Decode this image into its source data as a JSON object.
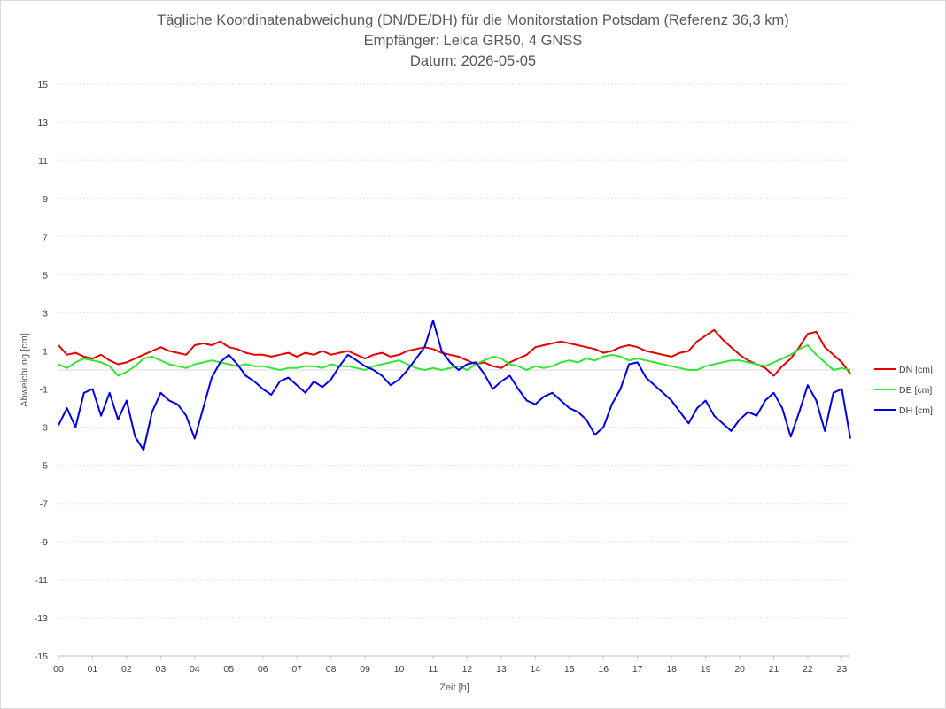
{
  "chart_data": {
    "type": "line",
    "title": "Tägliche Koordinatenabweichung (DN/DE/DH) für die Monitorstation Potsdam (Referenz 36,3 km)",
    "subtitle": "Empfänger: Leica GR50, 4 GNSS",
    "date_label": "Datum: 2026-05-05",
    "xlabel": "Zeit [h]",
    "ylabel": "Abweichung [cm]",
    "xlim": [
      0,
      23.25
    ],
    "ylim": [
      -15,
      15
    ],
    "x_ticks": [
      "00",
      "01",
      "02",
      "03",
      "04",
      "05",
      "06",
      "07",
      "08",
      "09",
      "10",
      "11",
      "12",
      "13",
      "14",
      "15",
      "16",
      "17",
      "18",
      "19",
      "20",
      "21",
      "22",
      "23"
    ],
    "y_ticks": [
      "15",
      "13",
      "11",
      "9",
      "7",
      "5",
      "3",
      "1",
      "-1",
      "-3",
      "-5",
      "-7",
      "-9",
      "-11",
      "-13",
      "-15"
    ],
    "y_tick_values": [
      15,
      13,
      11,
      9,
      7,
      5,
      3,
      1,
      -1,
      -3,
      -5,
      -7,
      -9,
      -11,
      -13,
      -15
    ],
    "grid": "horizontal dotted",
    "legend_position": "right",
    "series": [
      {
        "name": "DN [cm]",
        "color": "#e60000",
        "x": [
          0,
          0.25,
          0.5,
          0.75,
          1,
          1.25,
          1.5,
          1.75,
          2,
          2.25,
          2.5,
          2.75,
          3,
          3.25,
          3.5,
          3.75,
          4,
          4.25,
          4.5,
          4.75,
          5,
          5.25,
          5.5,
          5.75,
          6,
          6.25,
          6.5,
          6.75,
          7,
          7.25,
          7.5,
          7.75,
          8,
          8.25,
          8.5,
          8.75,
          9,
          9.25,
          9.5,
          9.75,
          10,
          10.25,
          10.5,
          10.75,
          11,
          11.25,
          11.5,
          11.75,
          12,
          12.25,
          12.5,
          12.75,
          13,
          13.25,
          13.5,
          13.75,
          14,
          14.25,
          14.5,
          14.75,
          15,
          15.25,
          15.5,
          15.75,
          16,
          16.25,
          16.5,
          16.75,
          17,
          17.25,
          17.5,
          17.75,
          18,
          18.25,
          18.5,
          18.75,
          19,
          19.25,
          19.5,
          19.75,
          20,
          20.25,
          20.5,
          20.75,
          21,
          21.25,
          21.5,
          21.75,
          22,
          22.25,
          22.5,
          22.75,
          23,
          23.25
        ],
        "values": [
          1.3,
          0.8,
          0.9,
          0.7,
          0.6,
          0.8,
          0.5,
          0.3,
          0.4,
          0.6,
          0.8,
          1.0,
          1.2,
          1.0,
          0.9,
          0.8,
          1.3,
          1.4,
          1.3,
          1.5,
          1.2,
          1.1,
          0.9,
          0.8,
          0.8,
          0.7,
          0.8,
          0.9,
          0.7,
          0.9,
          0.8,
          1.0,
          0.8,
          0.9,
          1.0,
          0.8,
          0.6,
          0.8,
          0.9,
          0.7,
          0.8,
          1.0,
          1.1,
          1.2,
          1.1,
          0.9,
          0.8,
          0.7,
          0.5,
          0.3,
          0.4,
          0.2,
          0.1,
          0.4,
          0.6,
          0.8,
          1.2,
          1.3,
          1.4,
          1.5,
          1.4,
          1.3,
          1.2,
          1.1,
          0.9,
          1.0,
          1.2,
          1.3,
          1.2,
          1.0,
          0.9,
          0.8,
          0.7,
          0.9,
          1.0,
          1.5,
          1.8,
          2.1,
          1.6,
          1.2,
          0.8,
          0.5,
          0.3,
          0.1,
          -0.3,
          0.2,
          0.6,
          1.2,
          1.9,
          2.0,
          1.2,
          0.8,
          0.4,
          -0.2
        ]
      },
      {
        "name": "DE [cm]",
        "color": "#33e633",
        "x": [
          0,
          0.25,
          0.5,
          0.75,
          1,
          1.25,
          1.5,
          1.75,
          2,
          2.25,
          2.5,
          2.75,
          3,
          3.25,
          3.5,
          3.75,
          4,
          4.25,
          4.5,
          4.75,
          5,
          5.25,
          5.5,
          5.75,
          6,
          6.25,
          6.5,
          6.75,
          7,
          7.25,
          7.5,
          7.75,
          8,
          8.25,
          8.5,
          8.75,
          9,
          9.25,
          9.5,
          9.75,
          10,
          10.25,
          10.5,
          10.75,
          11,
          11.25,
          11.5,
          11.75,
          12,
          12.25,
          12.5,
          12.75,
          13,
          13.25,
          13.5,
          13.75,
          14,
          14.25,
          14.5,
          14.75,
          15,
          15.25,
          15.5,
          15.75,
          16,
          16.25,
          16.5,
          16.75,
          17,
          17.25,
          17.5,
          17.75,
          18,
          18.25,
          18.5,
          18.75,
          19,
          19.25,
          19.5,
          19.75,
          20,
          20.25,
          20.5,
          20.75,
          21,
          21.25,
          21.5,
          21.75,
          22,
          22.25,
          22.5,
          22.75,
          23,
          23.25
        ],
        "values": [
          0.3,
          0.1,
          0.4,
          0.6,
          0.5,
          0.4,
          0.2,
          -0.3,
          -0.1,
          0.2,
          0.6,
          0.7,
          0.5,
          0.3,
          0.2,
          0.1,
          0.3,
          0.4,
          0.5,
          0.4,
          0.3,
          0.2,
          0.3,
          0.2,
          0.2,
          0.1,
          0.0,
          0.1,
          0.1,
          0.2,
          0.2,
          0.1,
          0.3,
          0.2,
          0.2,
          0.1,
          0.0,
          0.2,
          0.3,
          0.4,
          0.5,
          0.3,
          0.1,
          0.0,
          0.1,
          0.0,
          0.1,
          0.2,
          0.0,
          0.3,
          0.5,
          0.7,
          0.6,
          0.3,
          0.2,
          0.0,
          0.2,
          0.1,
          0.2,
          0.4,
          0.5,
          0.4,
          0.6,
          0.5,
          0.7,
          0.8,
          0.7,
          0.5,
          0.6,
          0.5,
          0.4,
          0.3,
          0.2,
          0.1,
          0.0,
          0.0,
          0.2,
          0.3,
          0.4,
          0.5,
          0.5,
          0.4,
          0.3,
          0.2,
          0.4,
          0.6,
          0.8,
          1.1,
          1.3,
          0.8,
          0.4,
          0.0,
          0.1,
          0.0
        ]
      },
      {
        "name": "DH [cm]",
        "color": "#0000e6",
        "x": [
          0,
          0.25,
          0.5,
          0.75,
          1,
          1.25,
          1.5,
          1.75,
          2,
          2.25,
          2.5,
          2.75,
          3,
          3.25,
          3.5,
          3.75,
          4,
          4.25,
          4.5,
          4.75,
          5,
          5.25,
          5.5,
          5.75,
          6,
          6.25,
          6.5,
          6.75,
          7,
          7.25,
          7.5,
          7.75,
          8,
          8.25,
          8.5,
          8.75,
          9,
          9.25,
          9.5,
          9.75,
          10,
          10.25,
          10.5,
          10.75,
          11,
          11.25,
          11.5,
          11.75,
          12,
          12.25,
          12.5,
          12.75,
          13,
          13.25,
          13.5,
          13.75,
          14,
          14.25,
          14.5,
          14.75,
          15,
          15.25,
          15.5,
          15.75,
          16,
          16.25,
          16.5,
          16.75,
          17,
          17.25,
          17.5,
          17.75,
          18,
          18.25,
          18.5,
          18.75,
          19,
          19.25,
          19.5,
          19.75,
          20,
          20.25,
          20.5,
          20.75,
          21,
          21.25,
          21.5,
          21.75,
          22,
          22.25,
          22.5,
          22.75,
          23,
          23.25
        ],
        "values": [
          -2.9,
          -2.0,
          -3.0,
          -1.2,
          -1.0,
          -2.4,
          -1.2,
          -2.6,
          -1.6,
          -3.5,
          -4.2,
          -2.2,
          -1.2,
          -1.6,
          -1.8,
          -2.4,
          -3.6,
          -2.0,
          -0.4,
          0.4,
          0.8,
          0.3,
          -0.3,
          -0.6,
          -1.0,
          -1.3,
          -0.6,
          -0.4,
          -0.8,
          -1.2,
          -0.6,
          -0.9,
          -0.5,
          0.2,
          0.8,
          0.5,
          0.2,
          0.0,
          -0.3,
          -0.8,
          -0.5,
          0.0,
          0.6,
          1.2,
          2.6,
          1.0,
          0.4,
          0.0,
          0.3,
          0.4,
          -0.2,
          -1.0,
          -0.6,
          -0.3,
          -1.0,
          -1.6,
          -1.8,
          -1.4,
          -1.2,
          -1.6,
          -2.0,
          -2.2,
          -2.6,
          -3.4,
          -3.0,
          -1.8,
          -1.0,
          0.3,
          0.4,
          -0.4,
          -0.8,
          -1.2,
          -1.6,
          -2.2,
          -2.8,
          -2.0,
          -1.6,
          -2.4,
          -2.8,
          -3.2,
          -2.6,
          -2.2,
          -2.4,
          -1.6,
          -1.2,
          -2.0,
          -3.5,
          -2.2,
          -0.8,
          -1.6,
          -3.2,
          -1.2,
          -1.0,
          -3.6
        ]
      }
    ]
  }
}
